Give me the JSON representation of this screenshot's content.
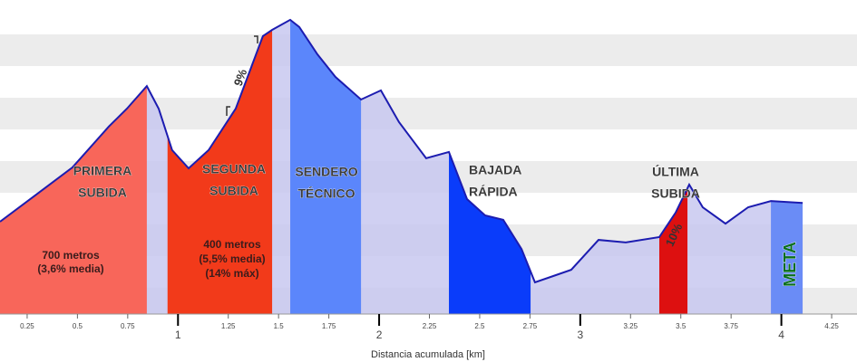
{
  "chart_data": {
    "type": "area",
    "x_label": "Distancia acumulada [km]",
    "x": [
      0.115,
      0.295,
      0.475,
      0.656,
      0.746,
      0.845,
      0.904,
      0.971,
      1.053,
      1.152,
      1.287,
      1.422,
      1.468,
      1.558,
      1.603,
      1.693,
      1.783,
      1.91,
      2.009,
      2.099,
      2.234,
      2.347,
      2.437,
      2.527,
      2.617,
      2.708,
      2.775,
      2.866,
      2.955,
      3.091,
      3.226,
      3.393,
      3.474,
      3.542,
      3.609,
      3.722,
      3.835,
      3.948,
      4.106
    ],
    "values": [
      29.4,
      38.0,
      46.7,
      59.7,
      65.4,
      72.6,
      65.4,
      52.2,
      46.4,
      52.2,
      65.4,
      88.5,
      90.5,
      93.7,
      91.4,
      82.7,
      75.5,
      68.3,
      71.2,
      61.1,
      49.6,
      51.6,
      36.6,
      31.4,
      30.0,
      20.7,
      10.1,
      12.1,
      14.1,
      23.6,
      22.8,
      24.5,
      32.3,
      41.2,
      34.0,
      28.8,
      34.0,
      36.0,
      35.4
    ],
    "color": "#1c1cb0",
    "fill": "#c8c8f0",
    "xlim": [
      0.115,
      4.376
    ],
    "ylim": [
      0,
      100
    ],
    "xticks": [
      0.25,
      0.5,
      0.75,
      1,
      1.25,
      1.5,
      1.75,
      2,
      2.25,
      2.5,
      2.75,
      3,
      3.25,
      3.5,
      3.75,
      4,
      4.25
    ],
    "sections": [
      {
        "name": [
          "PRIMERA",
          "SUBIDA"
        ],
        "start": 0.115,
        "end": 0.845,
        "color": "#f8665a",
        "notes": [
          "700 metros",
          "(3,6% media)"
        ]
      },
      {
        "name": [
          "SEGUNDA",
          "SUBIDA"
        ],
        "start": 0.948,
        "end": 1.468,
        "color": "#f23a1a",
        "notes": [
          "400 metros",
          "(5,5% media)",
          "(14% máx)",
          "9%"
        ]
      },
      {
        "name": [
          "SENDERO",
          "TÉCNICO"
        ],
        "start": 1.558,
        "end": 1.91,
        "color": "#5b86fb",
        "notes": []
      },
      {
        "name": [
          "BAJADA",
          "RÁPIDA"
        ],
        "start": 2.347,
        "end": 2.753,
        "color": "#0a3cfa",
        "notes": []
      },
      {
        "name": [
          "ÚLTIMA",
          "SUBIDA"
        ],
        "start": 3.393,
        "end": 3.533,
        "color": "#dd1010",
        "notes": [
          "10%"
        ]
      },
      {
        "name": [
          "META"
        ],
        "start": 3.948,
        "end": 4.106,
        "color": "#6a8cf6",
        "notes": []
      }
    ]
  }
}
